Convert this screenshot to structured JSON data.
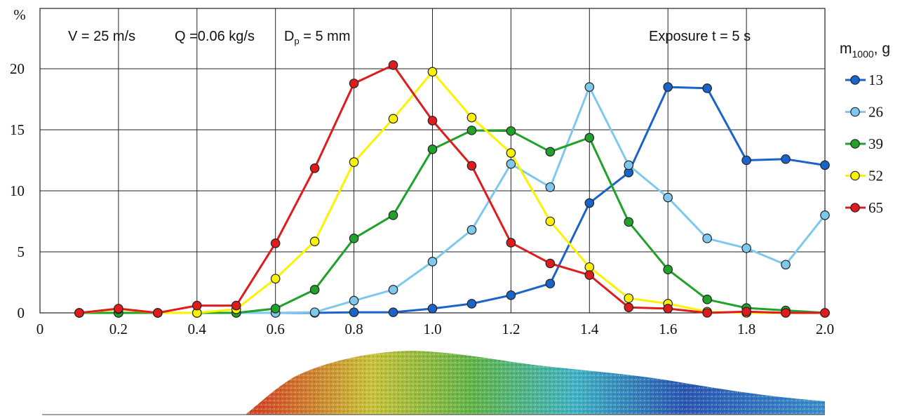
{
  "chart_data": {
    "type": "line",
    "title": "",
    "xlabel": "",
    "ylabel": "%",
    "xlim": [
      0,
      2.0
    ],
    "ylim": [
      0,
      20
    ],
    "x_ticks": [
      "0",
      "0.2",
      "0.4",
      "0.6",
      "0.8",
      "1.0",
      "1.2",
      "1.4",
      "1.6",
      "1.8",
      "2.0"
    ],
    "y_ticks": [
      "0",
      "5",
      "10",
      "15",
      "20"
    ],
    "grid": true,
    "annotations": {
      "velocity": "V = 25 m/s",
      "flow_rate": "Q =0.06 kg/s",
      "diameter_main": "D",
      "diameter_sub": "p",
      "diameter_rest": " = 5 mm",
      "exposure": "Exposure t = 5 s"
    },
    "legend_title_main": "m",
    "legend_title_sub": "1000",
    "legend_title_rest": ", g",
    "legend_position": "right",
    "x": [
      0.1,
      0.2,
      0.3,
      0.4,
      0.5,
      0.6,
      0.7,
      0.8,
      0.9,
      1.0,
      1.1,
      1.2,
      1.3,
      1.4,
      1.5,
      1.6,
      1.7,
      1.8,
      1.9,
      2.0
    ],
    "series": [
      {
        "name": "13",
        "color": "#1a63c9",
        "values": [
          0,
          0,
          0,
          0,
          0,
          0,
          0,
          0.05,
          0.05,
          0.35,
          0.75,
          1.45,
          2.4,
          9.0,
          11.5,
          18.5,
          18.4,
          12.5,
          12.6,
          12.1
        ]
      },
      {
        "name": "26",
        "color": "#7ec8ee",
        "values": [
          0,
          0,
          0,
          0,
          0,
          0,
          0.05,
          1.0,
          1.9,
          4.2,
          6.8,
          12.2,
          10.3,
          18.5,
          12.1,
          9.45,
          6.1,
          5.3,
          3.95,
          8.0
        ]
      },
      {
        "name": "39",
        "color": "#1fa12a",
        "values": [
          0,
          0,
          0,
          0,
          0,
          0.35,
          1.9,
          6.1,
          8.0,
          13.4,
          14.95,
          14.9,
          13.2,
          14.35,
          7.45,
          3.55,
          1.1,
          0.4,
          0.2,
          0
        ]
      },
      {
        "name": "52",
        "color": "#fdf200",
        "values": [
          0,
          0.3,
          0,
          0,
          0.3,
          2.8,
          5.85,
          12.35,
          15.9,
          19.75,
          16.0,
          13.1,
          7.5,
          3.75,
          1.2,
          0.75,
          0.1,
          0,
          0,
          0
        ]
      },
      {
        "name": "65",
        "color": "#e01b1b",
        "values": [
          0,
          0.35,
          0,
          0.6,
          0.6,
          5.7,
          11.85,
          18.8,
          20.3,
          15.75,
          12.05,
          5.75,
          4.05,
          3.1,
          0.45,
          0.35,
          0,
          0.1,
          0,
          0
        ]
      }
    ]
  }
}
